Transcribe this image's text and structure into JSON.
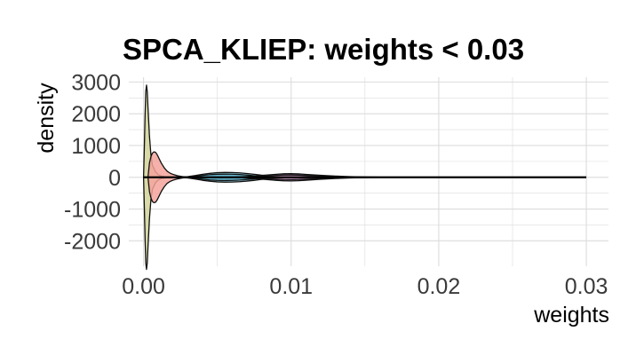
{
  "chart_data": {
    "type": "violin",
    "title": "SPCA_KLIEP: weights < 0.03",
    "xlabel": "weights",
    "ylabel": "density",
    "xlim": [
      -0.001,
      0.0315
    ],
    "ylim": [
      -2800,
      3150
    ],
    "x_ticks": [
      0.0,
      0.01,
      0.02,
      0.03
    ],
    "x_tick_labels": [
      "0.00",
      "0.01",
      "0.02",
      "0.03"
    ],
    "y_ticks": [
      -2000,
      -1000,
      0,
      1000,
      2000,
      3000
    ],
    "y_tick_labels": [
      "-2000",
      "-1000",
      "0",
      "1000",
      "2000",
      "3000"
    ],
    "grid": true,
    "legend": "none",
    "series": [
      {
        "fill": "#d4d39a",
        "points": [
          [
            0.0,
            0
          ],
          [
            5e-05,
            900
          ],
          [
            0.0001,
            1900
          ],
          [
            0.00015,
            2700
          ],
          [
            0.0002,
            2900
          ],
          [
            0.00025,
            2700
          ],
          [
            0.0003,
            2200
          ],
          [
            0.0004,
            1300
          ],
          [
            0.0005,
            700
          ],
          [
            0.0006,
            380
          ],
          [
            0.0008,
            180
          ],
          [
            0.001,
            80
          ],
          [
            0.0012,
            40
          ],
          [
            0.0015,
            15
          ],
          [
            0.002,
            0
          ]
        ]
      },
      {
        "fill": "#f3a39b",
        "points": [
          [
            0.0003,
            0
          ],
          [
            0.0004,
            450
          ],
          [
            0.0005,
            650
          ],
          [
            0.0006,
            760
          ],
          [
            0.0007,
            800
          ],
          [
            0.0008,
            790
          ],
          [
            0.0009,
            730
          ],
          [
            0.001,
            640
          ],
          [
            0.0012,
            450
          ],
          [
            0.0014,
            300
          ],
          [
            0.0016,
            190
          ],
          [
            0.0018,
            130
          ],
          [
            0.002,
            90
          ],
          [
            0.0023,
            50
          ],
          [
            0.0026,
            25
          ],
          [
            0.003,
            0
          ]
        ]
      },
      {
        "fill": "#86c6d8",
        "points": [
          [
            0.0025,
            0
          ],
          [
            0.003,
            20
          ],
          [
            0.0035,
            55
          ],
          [
            0.004,
            95
          ],
          [
            0.0045,
            125
          ],
          [
            0.005,
            145
          ],
          [
            0.0055,
            152
          ],
          [
            0.006,
            150
          ],
          [
            0.0065,
            140
          ],
          [
            0.007,
            120
          ],
          [
            0.0075,
            95
          ],
          [
            0.008,
            65
          ],
          [
            0.0085,
            40
          ],
          [
            0.009,
            20
          ],
          [
            0.0095,
            8
          ],
          [
            0.01,
            0
          ]
        ]
      },
      {
        "fill": "#5db4ce",
        "points": [
          [
            0.003,
            0
          ],
          [
            0.0035,
            30
          ],
          [
            0.004,
            60
          ],
          [
            0.0045,
            85
          ],
          [
            0.005,
            95
          ],
          [
            0.0055,
            100
          ],
          [
            0.006,
            98
          ],
          [
            0.0065,
            88
          ],
          [
            0.007,
            70
          ],
          [
            0.0075,
            50
          ],
          [
            0.008,
            30
          ],
          [
            0.0085,
            15
          ],
          [
            0.009,
            5
          ],
          [
            0.0095,
            0
          ]
        ]
      },
      {
        "fill": "#b79ad6",
        "points": [
          [
            0.006,
            0
          ],
          [
            0.007,
            25
          ],
          [
            0.008,
            60
          ],
          [
            0.009,
            95
          ],
          [
            0.0095,
            110
          ],
          [
            0.01,
            115
          ],
          [
            0.0105,
            108
          ],
          [
            0.011,
            92
          ],
          [
            0.012,
            62
          ],
          [
            0.013,
            38
          ],
          [
            0.014,
            20
          ],
          [
            0.015,
            10
          ],
          [
            0.016,
            4
          ],
          [
            0.017,
            0
          ]
        ]
      },
      {
        "fill": "#e6a6d3",
        "points": [
          [
            0.007,
            0
          ],
          [
            0.008,
            30
          ],
          [
            0.009,
            60
          ],
          [
            0.0095,
            70
          ],
          [
            0.01,
            72
          ],
          [
            0.0105,
            68
          ],
          [
            0.011,
            58
          ],
          [
            0.012,
            40
          ],
          [
            0.013,
            24
          ],
          [
            0.014,
            12
          ],
          [
            0.015,
            5
          ],
          [
            0.016,
            0
          ]
        ]
      }
    ],
    "baseline": {
      "from": 0.0,
      "to": 0.03
    }
  }
}
